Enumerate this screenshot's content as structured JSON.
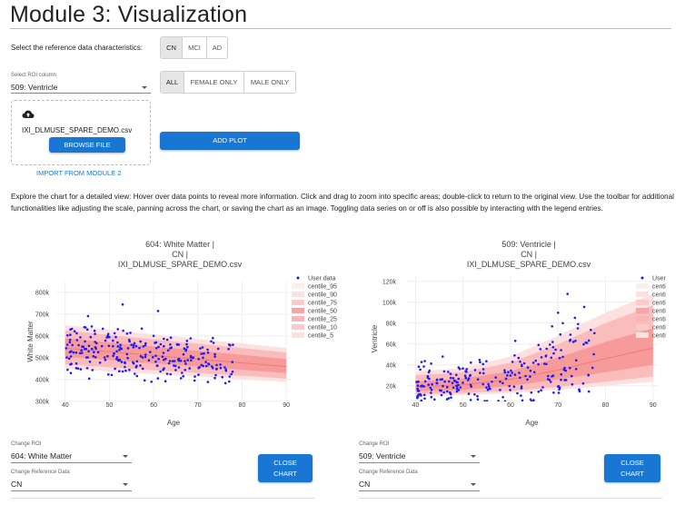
{
  "page": {
    "title": "Module 3: Visualization",
    "select_reference_label": "Select the reference data characteristics:",
    "info_text": "Explore the chart for a detailed view: Hover over data points to reveal more information. Click and drag to zoom into specific areas; double-click to return to the original view. Use the toolbar for additional functionalities like adjusting the scale, panning across the chart, or saving the chart as an image. Toggling data series on or off is also possible by interacting with the legend entries."
  },
  "reference_toggle": {
    "options": [
      "CN",
      "MCI",
      "AD"
    ],
    "selected": "CN"
  },
  "sex_toggle": {
    "options": [
      "ALL",
      "FEMALE ONLY",
      "MALE ONLY"
    ],
    "selected": "ALL"
  },
  "roi_select": {
    "label": "Select ROI column",
    "value": "509: Ventricle"
  },
  "upload": {
    "filename": "IXI_DLMUSE_SPARE_DEMO.csv",
    "browse_label": "BROWSE FILE",
    "import_label": "IMPORT FROM MODULE 2"
  },
  "add_plot_label": "ADD PLOT",
  "colors": {
    "accent": "#1976d2",
    "points": "#1a1aff",
    "band_outer": "#fde0e0",
    "band_mid": "#fbbcbc",
    "band_inner": "#f79a9a"
  },
  "charts": [
    {
      "title_lines": [
        "604: White Matter |",
        "CN |",
        "IXI_DLMUSE_SPARE_DEMO.csv"
      ],
      "legend": [
        "User data",
        "centile_95",
        "centile_90",
        "centile_75",
        "centile_50",
        "centile_25",
        "centile_10",
        "centile_5"
      ],
      "change_roi_label": "Change ROI",
      "change_roi_value": "604: White Matter",
      "change_ref_label": "Change Reference Data",
      "change_ref_value": "CN",
      "close_label_1": "CLOSE",
      "close_label_2": "CHART",
      "chart_data": {
        "type": "scatter",
        "title": "604: White Matter | CN | IXI_DLMUSE_SPARE_DEMO.csv",
        "xlabel": "Age",
        "ylabel": "White Matter",
        "xlim": [
          38,
          91
        ],
        "ylim": [
          300000,
          850000
        ],
        "x_ticks": [
          40,
          50,
          60,
          70,
          80,
          90
        ],
        "y_ticks": [
          300000,
          400000,
          500000,
          600000,
          700000,
          800000
        ],
        "y_tick_labels": [
          "300k",
          "400k",
          "500k",
          "600k",
          "700k",
          "800k"
        ],
        "centile_bands": {
          "age": [
            40,
            90
          ],
          "centile_5": [
            450000,
            390000
          ],
          "centile_10": [
            470000,
            405000
          ],
          "centile_25": [
            505000,
            430000
          ],
          "centile_50": [
            545000,
            460000
          ],
          "centile_75": [
            590000,
            495000
          ],
          "centile_90": [
            625000,
            525000
          ],
          "centile_95": [
            650000,
            545000
          ]
        }
      }
    },
    {
      "title_lines": [
        "509: Ventricle |",
        "CN |",
        "IXI_DLMUSE_SPARE_DEMO.csv"
      ],
      "legend": [
        "User",
        "centi",
        "centi",
        "centi",
        "centi",
        "centi",
        "centi",
        "centi"
      ],
      "change_roi_label": "Change ROI",
      "change_roi_value": "509: Ventricle",
      "change_ref_label": "Change Reference Data",
      "change_ref_value": "CN",
      "close_label_1": "CLOSE",
      "close_label_2": "CHART",
      "chart_data": {
        "type": "scatter",
        "title": "509: Ventricle | CN | IXI_DLMUSE_SPARE_DEMO.csv",
        "xlabel": "Age",
        "ylabel": "Ventricle",
        "xlim": [
          38,
          91
        ],
        "ylim": [
          5000,
          125000
        ],
        "x_ticks": [
          40,
          50,
          60,
          70,
          80,
          90
        ],
        "y_ticks": [
          20000,
          40000,
          60000,
          80000,
          100000,
          120000
        ],
        "y_tick_labels": [
          "20k",
          "40k",
          "60k",
          "80k",
          "100k",
          "120k"
        ],
        "centile_bands": {
          "age": [
            40,
            50,
            60,
            70,
            80,
            90
          ],
          "centile_5": [
            10000,
            11000,
            13000,
            16000,
            20000,
            24000
          ],
          "centile_10": [
            12000,
            13000,
            15000,
            19000,
            24000,
            29000
          ],
          "centile_25": [
            15000,
            16000,
            20000,
            26000,
            33000,
            40000
          ],
          "centile_50": [
            19000,
            21000,
            26000,
            35000,
            46000,
            56000
          ],
          "centile_75": [
            24000,
            27000,
            34000,
            47000,
            62000,
            75000
          ],
          "centile_90": [
            30000,
            33000,
            42000,
            60000,
            80000,
            97000
          ],
          "centile_95": [
            34000,
            37000,
            48000,
            68000,
            90000,
            108000
          ]
        }
      }
    }
  ]
}
